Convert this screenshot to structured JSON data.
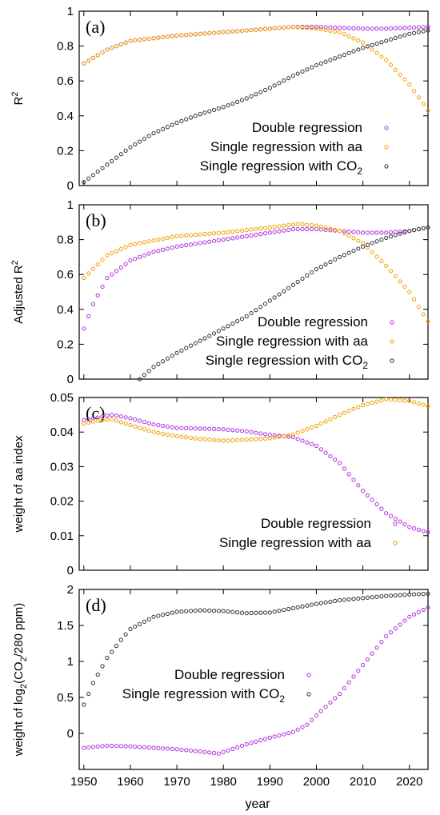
{
  "colors": {
    "double": "#b030e0",
    "aa": "#f0a000",
    "co2": "#333333"
  },
  "figure": {
    "xlabel": "year"
  },
  "chart_data": [
    {
      "type": "scatter",
      "panel_label": "(a)",
      "ylabel": "R2",
      "ylabel_parts": {
        "base": "R",
        "sup": "2"
      },
      "xlim": [
        1949,
        2024
      ],
      "ylim": [
        0,
        1
      ],
      "x_ticks": [
        "1950",
        "1960",
        "1970",
        "1980",
        "1990",
        "2000",
        "2010",
        "2020"
      ],
      "y_ticks": [
        {
          "v": 0,
          "label": "0"
        },
        {
          "v": 0.2,
          "label": "0.2"
        },
        {
          "v": 0.4,
          "label": "0.4"
        },
        {
          "v": 0.6,
          "label": "0.6"
        },
        {
          "v": 0.8,
          "label": "0.8"
        },
        {
          "v": 1,
          "label": "1"
        }
      ],
      "legend_position": "bottom-right",
      "series": [
        {
          "name": "Double regression",
          "color_key": "double",
          "x": [
            1950,
            1955,
            1960,
            1970,
            1980,
            1990,
            1995,
            2000,
            2005,
            2010,
            2015,
            2020,
            2024
          ],
          "y": [
            0.7,
            0.78,
            0.83,
            0.86,
            0.88,
            0.9,
            0.91,
            0.91,
            0.905,
            0.9,
            0.9,
            0.905,
            0.91
          ]
        },
        {
          "name": "Single regression with aa",
          "color_key": "aa",
          "x": [
            1950,
            1955,
            1960,
            1970,
            1980,
            1990,
            1995,
            2000,
            2005,
            2010,
            2015,
            2020,
            2024
          ],
          "y": [
            0.7,
            0.78,
            0.83,
            0.86,
            0.88,
            0.9,
            0.91,
            0.9,
            0.88,
            0.82,
            0.72,
            0.58,
            0.43
          ]
        },
        {
          "name": "Single regression with CO2",
          "name_parts": {
            "base": "Single regression with CO",
            "sub": "2"
          },
          "color_key": "co2",
          "x": [
            1950,
            1955,
            1960,
            1965,
            1970,
            1975,
            1980,
            1985,
            1990,
            1995,
            2000,
            2005,
            2010,
            2015,
            2020,
            2024
          ],
          "y": [
            0.02,
            0.12,
            0.22,
            0.3,
            0.36,
            0.41,
            0.45,
            0.5,
            0.56,
            0.63,
            0.69,
            0.74,
            0.79,
            0.83,
            0.87,
            0.89
          ]
        }
      ]
    },
    {
      "type": "scatter",
      "panel_label": "(b)",
      "ylabel": "Adjusted R2",
      "ylabel_parts": {
        "base": "Adjusted R",
        "sup": "2"
      },
      "xlim": [
        1949,
        2024
      ],
      "ylim": [
        0,
        1
      ],
      "x_ticks": [
        "1950",
        "1960",
        "1970",
        "1980",
        "1990",
        "2000",
        "2010",
        "2020"
      ],
      "y_ticks": [
        {
          "v": 0,
          "label": "0"
        },
        {
          "v": 0.2,
          "label": "0.2"
        },
        {
          "v": 0.4,
          "label": "0.4"
        },
        {
          "v": 0.6,
          "label": "0.6"
        },
        {
          "v": 0.8,
          "label": "0.8"
        },
        {
          "v": 1,
          "label": "1"
        }
      ],
      "legend_position": "bottom-right",
      "series": [
        {
          "name": "Double regression",
          "color_key": "double",
          "x": [
            1950,
            1952,
            1955,
            1960,
            1965,
            1970,
            1980,
            1990,
            1995,
            2000,
            2005,
            2010,
            2015,
            2020,
            2024
          ],
          "y": [
            0.29,
            0.43,
            0.58,
            0.68,
            0.73,
            0.76,
            0.8,
            0.84,
            0.86,
            0.86,
            0.85,
            0.84,
            0.84,
            0.85,
            0.87
          ]
        },
        {
          "name": "Single regression with aa",
          "color_key": "aa",
          "x": [
            1950,
            1955,
            1960,
            1970,
            1980,
            1990,
            1996,
            2000,
            2005,
            2010,
            2015,
            2020,
            2024
          ],
          "y": [
            0.58,
            0.71,
            0.77,
            0.82,
            0.84,
            0.87,
            0.89,
            0.88,
            0.85,
            0.78,
            0.65,
            0.5,
            0.33
          ]
        },
        {
          "name": "Single regression with CO2",
          "name_parts": {
            "base": "Single regression with CO",
            "sub": "2"
          },
          "color_key": "co2",
          "x": [
            1962,
            1965,
            1970,
            1975,
            1980,
            1985,
            1990,
            1995,
            2000,
            2005,
            2010,
            2015,
            2020,
            2024
          ],
          "y": [
            0.0,
            0.07,
            0.15,
            0.22,
            0.29,
            0.36,
            0.45,
            0.54,
            0.63,
            0.7,
            0.76,
            0.81,
            0.85,
            0.87
          ]
        }
      ]
    },
    {
      "type": "scatter",
      "panel_label": "(c)",
      "ylabel": "weight of aa index",
      "ylabel_parts": {
        "base": "weight of aa index"
      },
      "xlim": [
        1949,
        2024
      ],
      "ylim": [
        0,
        0.05
      ],
      "x_ticks": [
        "1950",
        "1960",
        "1970",
        "1980",
        "1990",
        "2000",
        "2010",
        "2020"
      ],
      "y_ticks": [
        {
          "v": 0,
          "label": "0"
        },
        {
          "v": 0.01,
          "label": "0.01"
        },
        {
          "v": 0.02,
          "label": "0.02"
        },
        {
          "v": 0.03,
          "label": "0.03"
        },
        {
          "v": 0.04,
          "label": "0.04"
        },
        {
          "v": 0.05,
          "label": "0.05"
        }
      ],
      "legend_position": "bottom-right",
      "series": [
        {
          "name": "Double regression",
          "color_key": "double",
          "x": [
            1950,
            1953,
            1956,
            1960,
            1965,
            1970,
            1975,
            1980,
            1985,
            1990,
            1995,
            2000,
            2005,
            2010,
            2015,
            2020,
            2024
          ],
          "y": [
            0.0435,
            0.0442,
            0.045,
            0.044,
            0.0422,
            0.0412,
            0.041,
            0.0408,
            0.0402,
            0.0392,
            0.0385,
            0.036,
            0.031,
            0.023,
            0.0165,
            0.0125,
            0.011
          ]
        },
        {
          "name": "Single regression with aa",
          "color_key": "aa",
          "x": [
            1950,
            1953,
            1956,
            1960,
            1965,
            1970,
            1975,
            1980,
            1985,
            1990,
            1995,
            2000,
            2005,
            2010,
            2015,
            2020,
            2024
          ],
          "y": [
            0.0425,
            0.0433,
            0.0437,
            0.042,
            0.04,
            0.0388,
            0.038,
            0.0375,
            0.0378,
            0.0382,
            0.0393,
            0.0418,
            0.045,
            0.0478,
            0.0495,
            0.049,
            0.0475
          ]
        }
      ]
    },
    {
      "type": "scatter",
      "panel_label": "(d)",
      "ylabel": "weight of log2(CO2/280 ppm)",
      "ylabel_parts": {
        "a": "weight of log",
        "b": "2",
        "c": "(CO",
        "d": "2",
        "e": "/280 ppm)"
      },
      "xlim": [
        1949,
        2024
      ],
      "ylim": [
        -0.5,
        2
      ],
      "x_ticks": [
        "1950",
        "1960",
        "1970",
        "1980",
        "1990",
        "2000",
        "2010",
        "2020"
      ],
      "y_ticks": [
        {
          "v": 0,
          "label": "0"
        },
        {
          "v": 0.5,
          "label": "0.5"
        },
        {
          "v": 1,
          "label": "1"
        },
        {
          "v": 1.5,
          "label": "1.5"
        },
        {
          "v": 2,
          "label": "2"
        }
      ],
      "legend_position": "right",
      "series": [
        {
          "name": "Double regression",
          "color_key": "double",
          "x": [
            1950,
            1955,
            1960,
            1965,
            1970,
            1975,
            1979,
            1985,
            1990,
            1995,
            1998,
            2000,
            2005,
            2010,
            2015,
            2020,
            2024
          ],
          "y": [
            -0.2,
            -0.17,
            -0.18,
            -0.2,
            -0.22,
            -0.25,
            -0.28,
            -0.15,
            -0.06,
            0.02,
            0.12,
            0.25,
            0.55,
            0.95,
            1.35,
            1.62,
            1.75
          ]
        },
        {
          "name": "Single regression with CO2",
          "name_parts": {
            "base": "Single regression with CO",
            "sub": "2"
          },
          "color_key": "co2",
          "x": [
            1950,
            1952,
            1955,
            1958,
            1960,
            1965,
            1970,
            1975,
            1980,
            1985,
            1990,
            1995,
            2000,
            2005,
            2010,
            2015,
            2020,
            2024
          ],
          "y": [
            0.4,
            0.7,
            1.05,
            1.3,
            1.45,
            1.62,
            1.69,
            1.71,
            1.7,
            1.67,
            1.68,
            1.74,
            1.8,
            1.85,
            1.88,
            1.91,
            1.93,
            1.94
          ]
        }
      ]
    }
  ]
}
